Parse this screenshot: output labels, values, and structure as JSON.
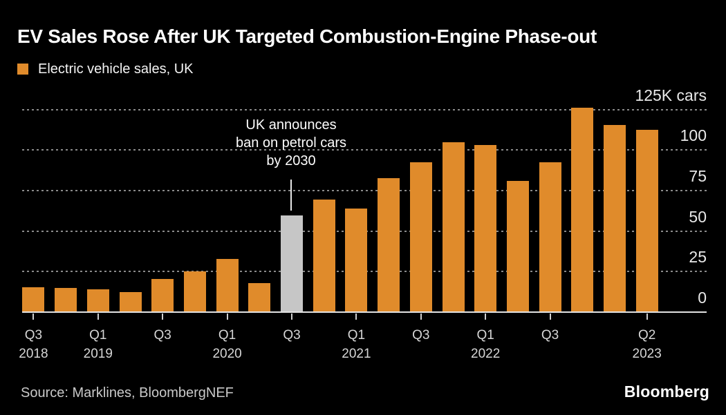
{
  "header": {
    "title": "EV Sales Rose After UK Targeted Combustion-Engine Phase-out",
    "legend_label": "Electric vehicle sales, UK"
  },
  "chart_data": {
    "type": "bar",
    "title": "EV Sales Rose After UK Targeted Combustion-Engine Phase-out",
    "legend": [
      {
        "label": "Electric vehicle sales, UK",
        "color": "#e08b2b",
        "position": "top-left"
      }
    ],
    "categories": [
      "Q3 2018",
      "Q4 2018",
      "Q1 2019",
      "Q2 2019",
      "Q3 2019",
      "Q4 2019",
      "Q1 2020",
      "Q2 2020",
      "Q3 2020",
      "Q4 2020",
      "Q1 2021",
      "Q2 2021",
      "Q3 2021",
      "Q4 2021",
      "Q1 2022",
      "Q2 2022",
      "Q3 2022",
      "Q4 2022",
      "Q1 2023",
      "Q2 2023"
    ],
    "values": [
      15.5,
      15,
      14,
      12.5,
      20.5,
      25,
      33,
      18,
      59.5,
      69.5,
      64,
      82.5,
      92.5,
      105,
      103,
      81,
      92.5,
      126,
      115.5,
      112.5
    ],
    "unit": "thousand cars",
    "ylim": [
      0,
      130
    ],
    "grid": "horizontal-dotted",
    "gridline_values": [
      25,
      50,
      75,
      100,
      125
    ],
    "y_axis_labels": [
      {
        "value": 0,
        "label": "0"
      },
      {
        "value": 25,
        "label": "25"
      },
      {
        "value": 50,
        "label": "50"
      },
      {
        "value": 75,
        "label": "75"
      },
      {
        "value": 100,
        "label": "100"
      },
      {
        "value": 125,
        "label": "125K cars"
      }
    ],
    "x_ticks": [
      {
        "quarter": "Q3",
        "year": "2018",
        "bar_index": 0
      },
      {
        "quarter": "Q1",
        "year": "2019",
        "bar_index": 2
      },
      {
        "quarter": "Q3",
        "year": "",
        "bar_index": 4
      },
      {
        "quarter": "Q1",
        "year": "2020",
        "bar_index": 6
      },
      {
        "quarter": "Q3",
        "year": "",
        "bar_index": 8
      },
      {
        "quarter": "Q1",
        "year": "2021",
        "bar_index": 10
      },
      {
        "quarter": "Q3",
        "year": "",
        "bar_index": 12
      },
      {
        "quarter": "Q1",
        "year": "2022",
        "bar_index": 14
      },
      {
        "quarter": "Q3",
        "year": "",
        "bar_index": 16
      },
      {
        "quarter": "Q2",
        "year": "2023",
        "bar_index": 19
      }
    ],
    "highlight": {
      "category": "Q3 2020",
      "bar_index": 8
    },
    "annotation": {
      "line1": "UK announces",
      "line2": "ban on petrol cars",
      "line3": "by 2030",
      "points_to": "Q3 2020"
    },
    "colors": {
      "bar": "#e08b2b",
      "highlighted_bar": "#c6c6c6",
      "background": "#000000",
      "gridline": "#8b8b8b",
      "axis_line": "#e3e3e3",
      "text": "#ffffff"
    }
  },
  "footer": {
    "source": "Source: Marklines, BloombergNEF",
    "brand": "Bloomberg"
  }
}
